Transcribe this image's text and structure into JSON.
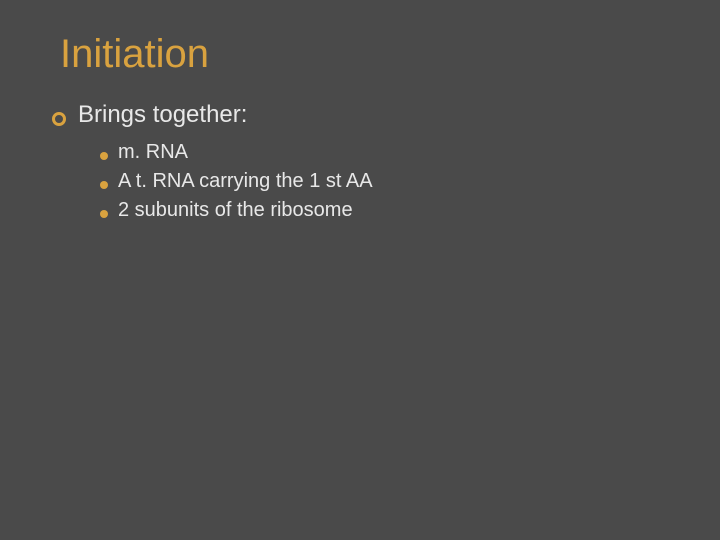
{
  "slide": {
    "background_color": "#4a4a4a",
    "accent_color": "#d9a23f",
    "text_color": "#e8e8e8",
    "title": "Initiation",
    "title_fontsize": 40,
    "level1": {
      "text": "Brings together:",
      "fontsize": 24,
      "bullet": {
        "type": "ring",
        "color": "#d9a23f",
        "size": 14,
        "border_width": 3
      }
    },
    "level2": {
      "fontsize": 20,
      "bullet": {
        "type": "dot",
        "color": "#d9a23f",
        "size": 8
      },
      "items": [
        "m. RNA",
        "A t. RNA carrying the 1 st AA",
        "2 subunits of the ribosome"
      ]
    }
  }
}
